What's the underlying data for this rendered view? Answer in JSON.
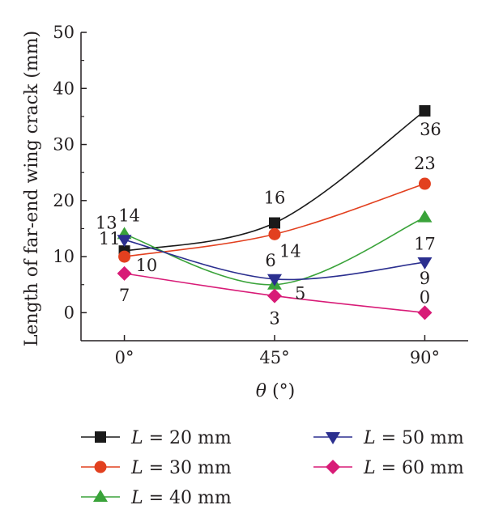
{
  "chart_data": {
    "type": "line",
    "xlabel": "θ (°)",
    "ylabel": "Length of far-end wing crack (mm)",
    "categories": [
      "0°",
      "45°",
      "90°"
    ],
    "x": [
      0,
      45,
      90
    ],
    "xlim": [
      -13,
      103
    ],
    "ylim": [
      -5,
      50
    ],
    "yticks": [
      0,
      10,
      20,
      30,
      40,
      50
    ],
    "grid": false,
    "legend_position": "bottom",
    "series": [
      {
        "name": "L = 20 mm",
        "name_italic": "L",
        "name_rest": " = 20 mm",
        "values": [
          11,
          16,
          36
        ],
        "labels": [
          "11",
          "16",
          "36"
        ],
        "color": "#1a1a1a",
        "marker": "square"
      },
      {
        "name": "L = 30 mm",
        "name_italic": "L",
        "name_rest": " = 30 mm",
        "values": [
          10,
          14,
          23
        ],
        "labels": [
          "10",
          "14",
          "23"
        ],
        "color": "#e2401f",
        "marker": "circle"
      },
      {
        "name": "L = 40 mm",
        "name_italic": "L",
        "name_rest": " = 40 mm",
        "values": [
          14,
          5,
          17
        ],
        "labels": [
          "14",
          "5",
          "17"
        ],
        "color": "#3aa33a",
        "marker": "triangle-up"
      },
      {
        "name": "L = 50 mm",
        "name_italic": "L",
        "name_rest": " = 50 mm",
        "values": [
          13,
          6,
          9
        ],
        "labels": [
          "13",
          "6",
          "9"
        ],
        "color": "#2b2f8f",
        "marker": "triangle-down"
      },
      {
        "name": "L = 60 mm",
        "name_italic": "L",
        "name_rest": " = 60 mm",
        "values": [
          7,
          3,
          0
        ],
        "labels": [
          "7",
          "3",
          "0"
        ],
        "color": "#d81b77",
        "marker": "diamond"
      }
    ]
  }
}
